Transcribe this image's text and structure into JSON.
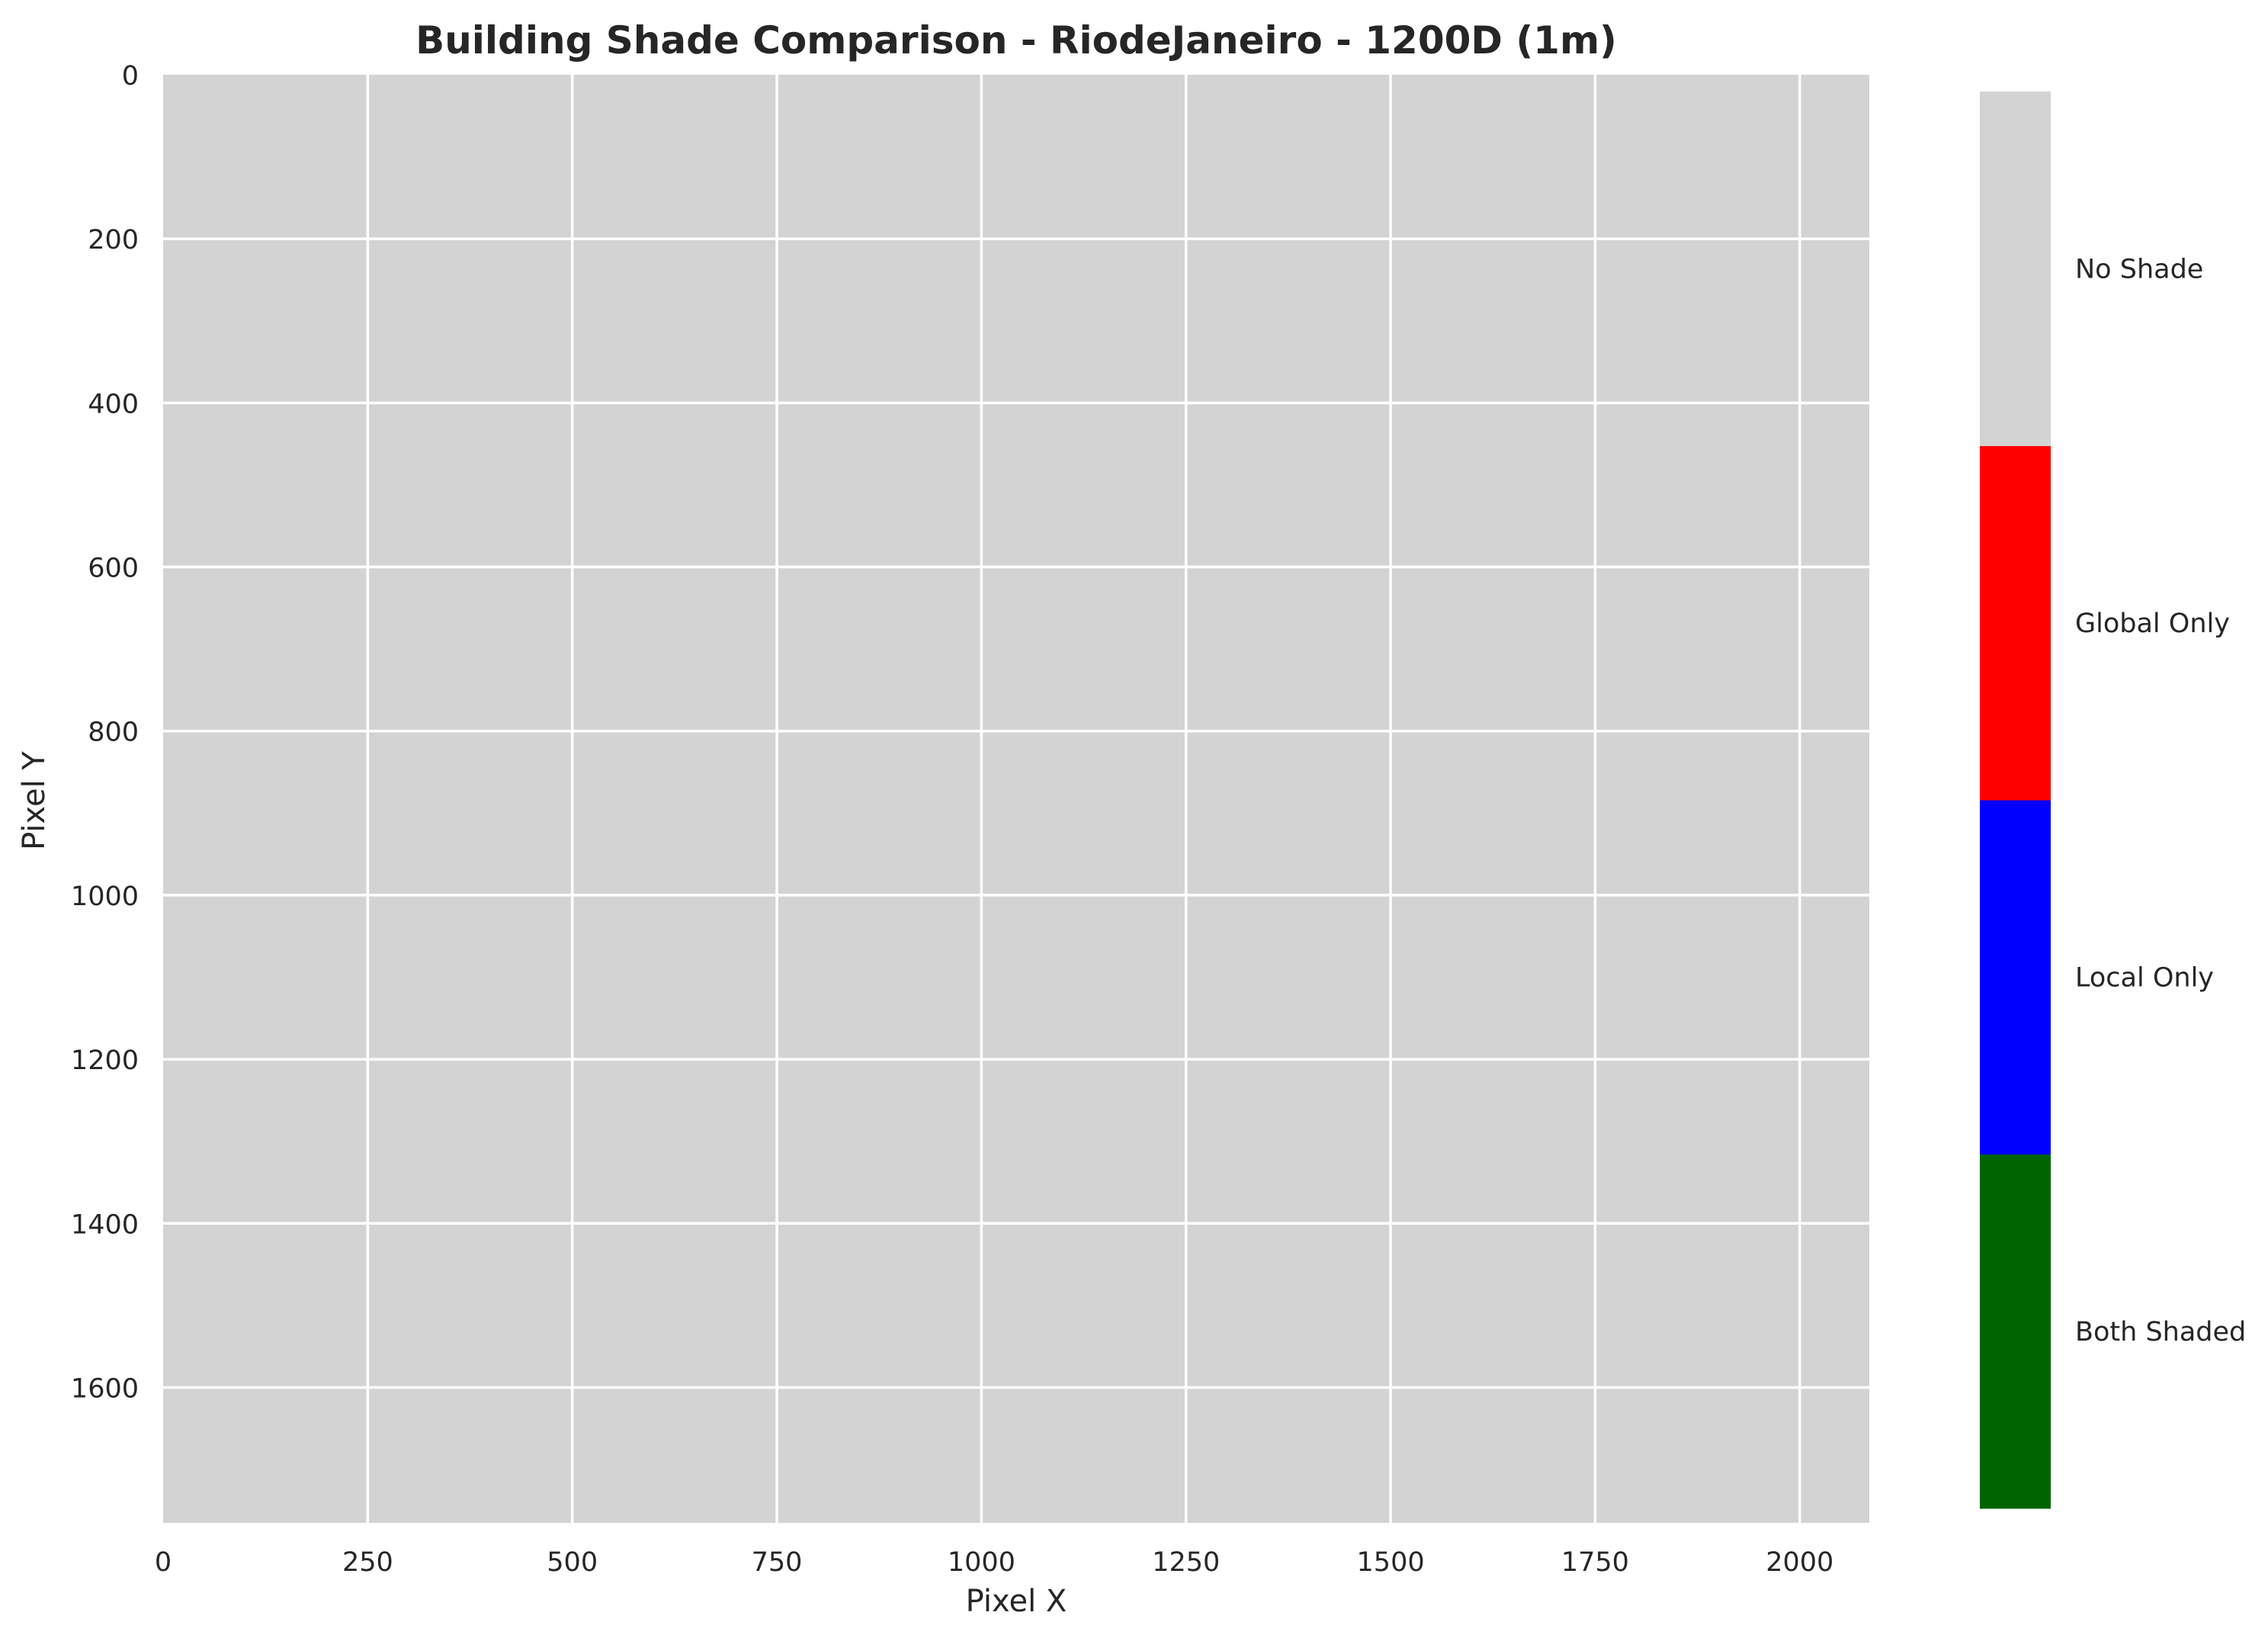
{
  "chart_data": {
    "type": "heatmap",
    "title": "Building Shade Comparison - RiodeJaneiro - 1200D (1m)",
    "xlabel": "Pixel X",
    "ylabel": "Pixel Y",
    "xlim": [
      0,
      2085
    ],
    "ylim": [
      1765,
      0
    ],
    "x_ticks": [
      0,
      250,
      500,
      750,
      1000,
      1250,
      1500,
      1750,
      2000
    ],
    "y_ticks": [
      0,
      200,
      400,
      600,
      800,
      1000,
      1200,
      1400,
      1600
    ],
    "grid": true,
    "fill_class": "No Shade",
    "background_color": "#d3d3d3",
    "grid_color": "#ffffff",
    "colorbar": {
      "position": "right",
      "categories": [
        {
          "label": "Both Shaded",
          "color": "#006400"
        },
        {
          "label": "Local Only",
          "color": "#0000ff"
        },
        {
          "label": "Global Only",
          "color": "#ff0000"
        },
        {
          "label": "No Shade",
          "color": "#d3d3d3"
        }
      ]
    }
  }
}
